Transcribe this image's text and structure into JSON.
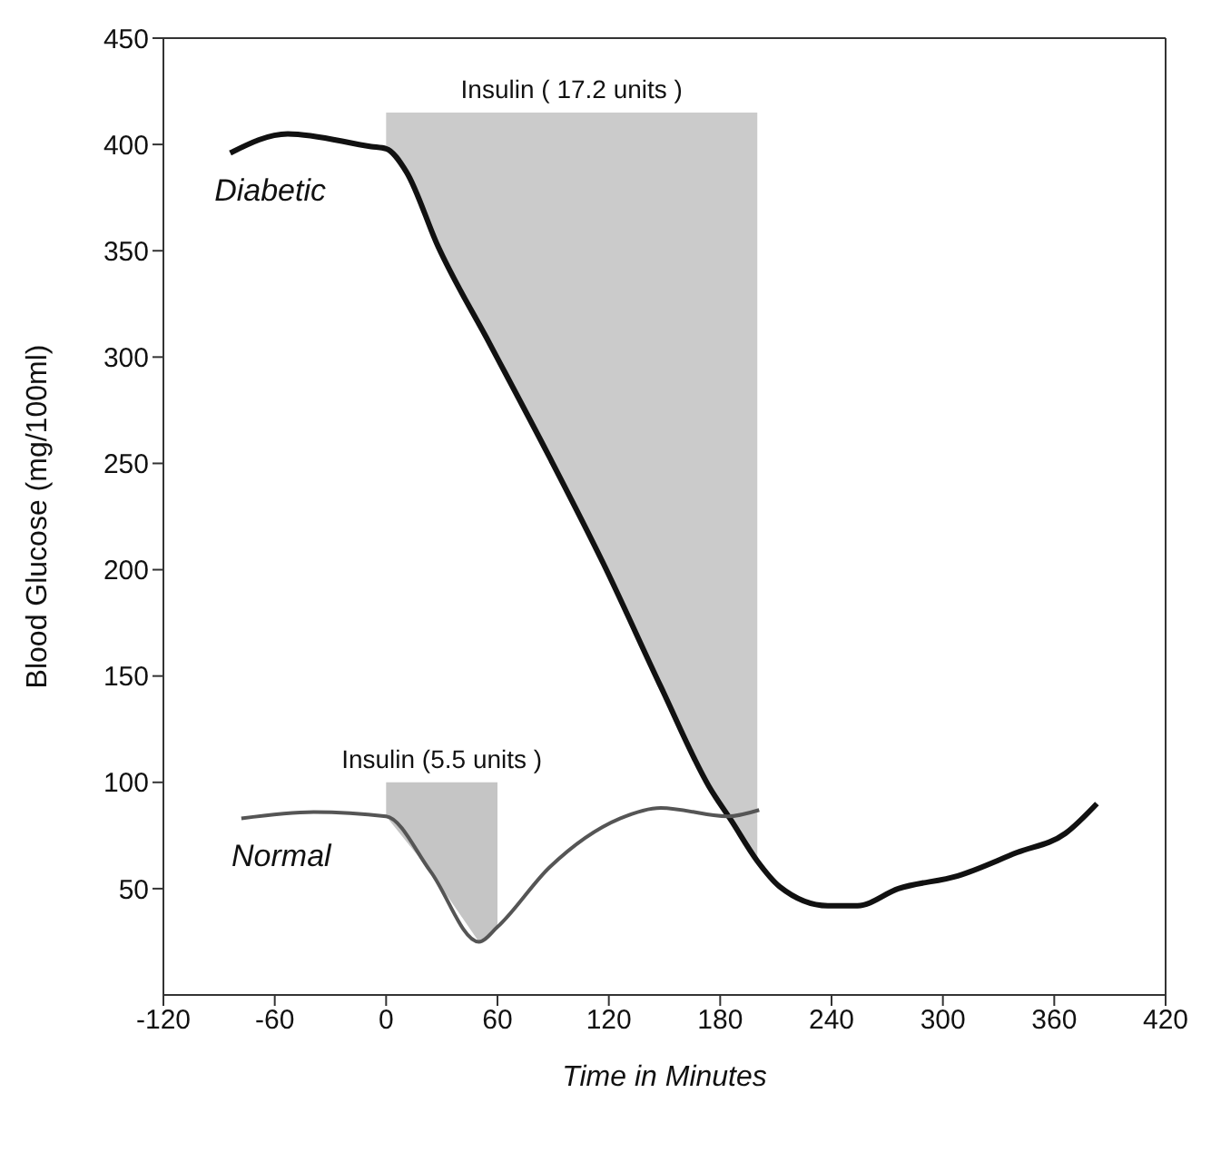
{
  "chart_data": {
    "type": "line",
    "xlabel": "Time in Minutes",
    "ylabel": "Blood Glucose (mg/100ml)",
    "xlim": [
      -120,
      420
    ],
    "xticks": [
      -120,
      -60,
      0,
      60,
      120,
      180,
      240,
      300,
      360,
      420
    ],
    "ylim": [
      0,
      450
    ],
    "yticks": [
      50,
      100,
      150,
      200,
      250,
      300,
      350,
      400,
      450
    ],
    "marker": "none",
    "line_style": "solid",
    "series": [
      {
        "name": "Diabetic",
        "color": "#111111",
        "x": [
          -84,
          -53,
          -8,
          0,
          11,
          28,
          56,
          88,
          117,
          148,
          174,
          186,
          200,
          212,
          238,
          254,
          276,
          308,
          340,
          366,
          383
        ],
        "values": [
          396,
          405,
          399,
          398,
          387,
          352,
          306,
          253,
          203,
          145,
          98,
          82,
          63,
          51,
          42,
          42,
          50,
          56,
          67,
          76,
          90
        ],
        "lower": [
          null,
          null,
          null,
          398,
          387,
          352,
          306,
          253,
          203,
          145,
          98,
          82,
          63,
          null,
          null,
          null,
          null,
          null,
          null,
          null,
          null
        ],
        "upper": [
          null,
          null,
          null,
          415,
          415,
          415,
          415,
          415,
          415,
          415,
          415,
          415,
          415,
          null,
          null,
          null,
          null,
          null,
          null,
          null,
          null
        ]
      },
      {
        "name": "Normal",
        "color": "#555555",
        "x": [
          -78,
          -39,
          0,
          24,
          50,
          60,
          88,
          126,
          148,
          184,
          201
        ],
        "values": [
          83,
          86,
          84,
          58,
          25,
          32,
          60,
          83,
          88,
          84,
          87
        ],
        "lower": [
          null,
          null,
          84,
          58,
          25,
          32,
          null,
          null,
          null,
          null,
          null
        ],
        "upper": [
          null,
          null,
          100,
          100,
          100,
          100,
          null,
          null,
          null,
          null,
          null
        ]
      }
    ],
    "annotations": [
      {
        "text": "Insulin ( 17.2 units )",
        "x": 100,
        "y": 415
      },
      {
        "text": "Insulin (5.5 units )",
        "x": 30,
        "y": 100
      }
    ]
  }
}
